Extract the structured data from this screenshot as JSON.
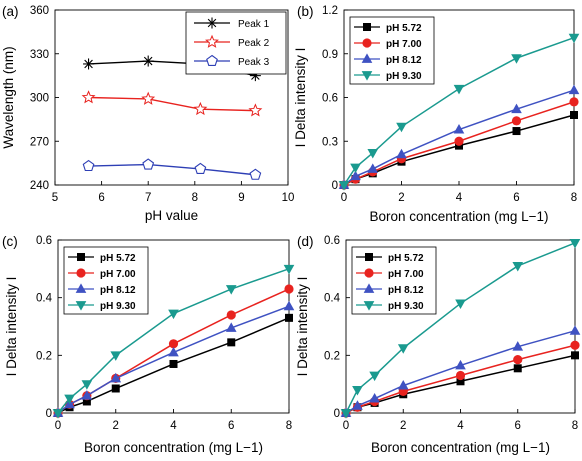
{
  "chart_data": [
    {
      "panel": "(a)",
      "type": "line",
      "xlabel": "pH value",
      "ylabel": "Wavelength (nm)",
      "xlim": [
        5,
        10
      ],
      "ylim": [
        240,
        360
      ],
      "xticks": [
        5,
        6,
        7,
        8,
        9,
        10
      ],
      "yticks": [
        240,
        270,
        300,
        330,
        360
      ],
      "x": [
        5.72,
        7.0,
        8.12,
        9.3
      ],
      "legend_position": "top-right",
      "series": [
        {
          "name": "Peak 1",
          "marker": "asterisk",
          "color": "#000000",
          "values": [
            323,
            325,
            323,
            315
          ]
        },
        {
          "name": "Peak 2",
          "marker": "star",
          "color": "#e8231f",
          "values": [
            300,
            299,
            292,
            291
          ]
        },
        {
          "name": "Peak 3",
          "marker": "pentagon",
          "color": "#2e3fb5",
          "values": [
            253,
            254,
            251,
            247
          ]
        }
      ]
    },
    {
      "panel": "(b)",
      "type": "line",
      "xlabel": "Boron concentration (mg L−1)",
      "ylabel": "I Delta intensity I",
      "xlim": [
        0,
        8
      ],
      "ylim": [
        0,
        1.2
      ],
      "xticks": [
        0,
        2,
        4,
        6,
        8
      ],
      "yticks": [
        "0",
        "0.3",
        "0.6",
        "0.9",
        "1.2"
      ],
      "x": [
        0,
        0.4,
        1,
        2,
        4,
        6,
        8
      ],
      "legend_position": "top-left",
      "series": [
        {
          "name": "pH 5.72",
          "marker": "square",
          "color": "#000000",
          "values": [
            0,
            0.04,
            0.08,
            0.16,
            0.27,
            0.37,
            0.48
          ]
        },
        {
          "name": "pH 7.00",
          "marker": "circle",
          "color": "#e8231f",
          "values": [
            0,
            0.04,
            0.09,
            0.18,
            0.3,
            0.44,
            0.57
          ]
        },
        {
          "name": "pH 8.12",
          "marker": "triangle-up",
          "color": "#3f52c2",
          "values": [
            0,
            0.06,
            0.11,
            0.21,
            0.38,
            0.52,
            0.65
          ]
        },
        {
          "name": "pH 9.30",
          "marker": "triangle-down",
          "color": "#1a9a8f",
          "values": [
            0,
            0.12,
            0.22,
            0.4,
            0.66,
            0.87,
            1.01
          ]
        }
      ]
    },
    {
      "panel": "(c)",
      "type": "line",
      "xlabel": "Boron concentration (mg L−1)",
      "ylabel": "I Delta intensity I",
      "xlim": [
        0,
        8
      ],
      "ylim": [
        0,
        0.6
      ],
      "xticks": [
        0,
        2,
        4,
        6,
        8
      ],
      "yticks": [
        "0",
        "0.2",
        "0.4",
        "0.6"
      ],
      "x": [
        0,
        0.4,
        1,
        2,
        4,
        6,
        8
      ],
      "legend_position": "top-left",
      "series": [
        {
          "name": "pH 5.72",
          "marker": "square",
          "color": "#000000",
          "values": [
            0,
            0.02,
            0.04,
            0.085,
            0.17,
            0.245,
            0.33
          ]
        },
        {
          "name": "pH 7.00",
          "marker": "circle",
          "color": "#e8231f",
          "values": [
            0,
            0.03,
            0.06,
            0.12,
            0.24,
            0.34,
            0.43
          ]
        },
        {
          "name": "pH 8.12",
          "marker": "triangle-up",
          "color": "#3f52c2",
          "values": [
            0,
            0.03,
            0.06,
            0.12,
            0.21,
            0.295,
            0.37
          ]
        },
        {
          "name": "pH 9.30",
          "marker": "triangle-down",
          "color": "#1a9a8f",
          "values": [
            0,
            0.05,
            0.1,
            0.2,
            0.345,
            0.43,
            0.5
          ]
        }
      ]
    },
    {
      "panel": "(d)",
      "type": "line",
      "xlabel": "Boron concentration (mg L−1)",
      "ylabel": "I Delta intensity I",
      "xlim": [
        0,
        8
      ],
      "ylim": [
        0,
        0.6
      ],
      "xticks": [
        0,
        2,
        4,
        6,
        8
      ],
      "yticks": [
        "0",
        "0.2",
        "0.4",
        "0.6"
      ],
      "x": [
        0,
        0.4,
        1,
        2,
        4,
        6,
        8
      ],
      "legend_position": "top-left",
      "series": [
        {
          "name": "pH 5.72",
          "marker": "square",
          "color": "#000000",
          "values": [
            0,
            0.02,
            0.035,
            0.065,
            0.11,
            0.155,
            0.2
          ]
        },
        {
          "name": "pH 7.00",
          "marker": "circle",
          "color": "#e8231f",
          "values": [
            0,
            0.02,
            0.04,
            0.075,
            0.13,
            0.185,
            0.235
          ]
        },
        {
          "name": "pH 8.12",
          "marker": "triangle-up",
          "color": "#3f52c2",
          "values": [
            0,
            0.025,
            0.05,
            0.095,
            0.165,
            0.23,
            0.285
          ]
        },
        {
          "name": "pH 9.30",
          "marker": "triangle-down",
          "color": "#1a9a8f",
          "values": [
            0,
            0.08,
            0.13,
            0.225,
            0.38,
            0.51,
            0.59
          ]
        }
      ]
    }
  ]
}
